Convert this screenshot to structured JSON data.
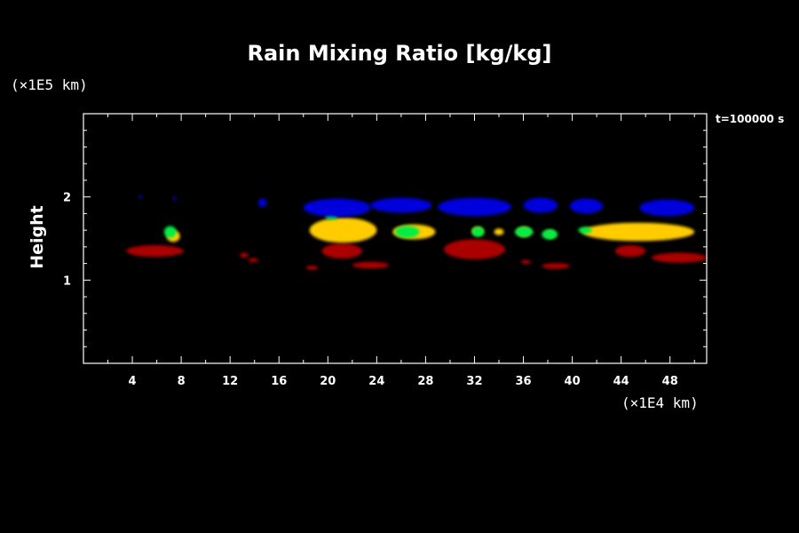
{
  "chart_data": {
    "type": "heatmap",
    "title": "Rain Mixing Ratio [kg/kg]",
    "ylabel": "Height",
    "xlabel": "",
    "x_units": "(×1E4 km)",
    "y_units": "(×1E5 km)",
    "time_label": "t=100000 s",
    "xlim": [
      0,
      51
    ],
    "ylim": [
      0,
      3
    ],
    "x_ticks": [
      "4",
      "8",
      "12",
      "16",
      "20",
      "24",
      "28",
      "32",
      "36",
      "40",
      "44",
      "48"
    ],
    "y_ticks": [
      "1",
      "2"
    ],
    "colors": {
      "low": "#aa0000",
      "mid": "#00ee44",
      "high": "#ffcc00",
      "top": "#0000dd"
    },
    "blobs": [
      {
        "level": "top",
        "x0": 18.0,
        "x1": 23.5,
        "y": 1.87,
        "h": 0.22
      },
      {
        "level": "top",
        "x0": 23.5,
        "x1": 28.5,
        "y": 1.9,
        "h": 0.18
      },
      {
        "level": "top",
        "x0": 29.0,
        "x1": 35.0,
        "y": 1.88,
        "h": 0.22
      },
      {
        "level": "top",
        "x0": 36.0,
        "x1": 38.8,
        "y": 1.9,
        "h": 0.18
      },
      {
        "level": "top",
        "x0": 39.8,
        "x1": 42.5,
        "y": 1.89,
        "h": 0.18
      },
      {
        "level": "top",
        "x0": 45.5,
        "x1": 50.0,
        "y": 1.87,
        "h": 0.2
      },
      {
        "level": "top",
        "x0": 14.3,
        "x1": 15.0,
        "y": 1.93,
        "h": 0.1
      },
      {
        "level": "top",
        "x0": 4.5,
        "x1": 4.8,
        "y": 2.0,
        "h": 0.04
      },
      {
        "level": "top",
        "x0": 7.3,
        "x1": 7.6,
        "y": 1.98,
        "h": 0.04
      },
      {
        "level": "mid",
        "x0": 19.8,
        "x1": 20.8,
        "y": 1.76,
        "h": 0.07
      },
      {
        "level": "mid",
        "x0": 6.6,
        "x1": 7.6,
        "y": 1.58,
        "h": 0.14
      },
      {
        "level": "mid",
        "x0": 25.5,
        "x1": 27.5,
        "y": 1.58,
        "h": 0.14
      },
      {
        "level": "mid",
        "x0": 31.8,
        "x1": 32.8,
        "y": 1.58,
        "h": 0.12
      },
      {
        "level": "mid",
        "x0": 35.3,
        "x1": 36.8,
        "y": 1.58,
        "h": 0.12
      },
      {
        "level": "mid",
        "x0": 37.5,
        "x1": 38.8,
        "y": 1.55,
        "h": 0.12
      },
      {
        "level": "mid",
        "x0": 40.5,
        "x1": 41.6,
        "y": 1.6,
        "h": 0.08
      },
      {
        "level": "high",
        "x0": 18.5,
        "x1": 24.0,
        "y": 1.6,
        "h": 0.3
      },
      {
        "level": "high",
        "x0": 25.3,
        "x1": 28.8,
        "y": 1.58,
        "h": 0.18
      },
      {
        "level": "high",
        "x0": 31.8,
        "x1": 32.7,
        "y": 1.59,
        "h": 0.1
      },
      {
        "level": "high",
        "x0": 33.6,
        "x1": 34.4,
        "y": 1.58,
        "h": 0.08
      },
      {
        "level": "high",
        "x0": 35.5,
        "x1": 36.6,
        "y": 1.58,
        "h": 0.12
      },
      {
        "level": "high",
        "x0": 37.8,
        "x1": 38.6,
        "y": 1.55,
        "h": 0.1
      },
      {
        "level": "high",
        "x0": 40.8,
        "x1": 50.0,
        "y": 1.58,
        "h": 0.22
      },
      {
        "level": "high",
        "x0": 6.8,
        "x1": 7.9,
        "y": 1.53,
        "h": 0.14
      },
      {
        "level": "low",
        "x0": 3.5,
        "x1": 8.2,
        "y": 1.35,
        "h": 0.14
      },
      {
        "level": "low",
        "x0": 12.8,
        "x1": 13.5,
        "y": 1.3,
        "h": 0.06
      },
      {
        "level": "low",
        "x0": 13.5,
        "x1": 14.3,
        "y": 1.24,
        "h": 0.05
      },
      {
        "level": "low",
        "x0": 18.2,
        "x1": 19.2,
        "y": 1.15,
        "h": 0.05
      },
      {
        "level": "low",
        "x0": 19.5,
        "x1": 22.8,
        "y": 1.35,
        "h": 0.18
      },
      {
        "level": "low",
        "x0": 22.0,
        "x1": 25.0,
        "y": 1.18,
        "h": 0.08
      },
      {
        "level": "low",
        "x0": 29.5,
        "x1": 34.5,
        "y": 1.37,
        "h": 0.24
      },
      {
        "level": "low",
        "x0": 35.8,
        "x1": 36.6,
        "y": 1.22,
        "h": 0.05
      },
      {
        "level": "low",
        "x0": 37.5,
        "x1": 39.8,
        "y": 1.17,
        "h": 0.07
      },
      {
        "level": "low",
        "x0": 43.5,
        "x1": 46.0,
        "y": 1.35,
        "h": 0.14
      },
      {
        "level": "low",
        "x0": 46.5,
        "x1": 51.0,
        "y": 1.27,
        "h": 0.12
      }
    ]
  }
}
